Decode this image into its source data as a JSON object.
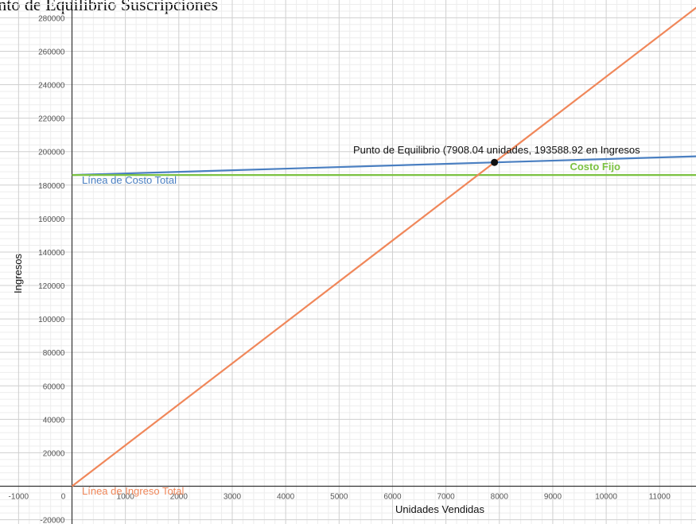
{
  "chart_data": {
    "type": "line",
    "title": "Punto de Equilibrio Suscripciones",
    "xlabel": "Unidades Vendidas",
    "ylabel": "Ingresos",
    "xlim": [
      -1000,
      11700
    ],
    "ylim": [
      -20000,
      286000
    ],
    "x_ticks": [
      -1000,
      0,
      1000,
      2000,
      3000,
      4000,
      5000,
      6000,
      7000,
      8000,
      9000,
      10000,
      11000
    ],
    "y_ticks": [
      -20000,
      20000,
      40000,
      60000,
      80000,
      100000,
      120000,
      140000,
      160000,
      180000,
      200000,
      220000,
      240000,
      260000,
      280000
    ],
    "grid": true,
    "series": [
      {
        "name": "Línea de Costo Total",
        "color": "#4a7fc1",
        "x": [
          0,
          11700
        ],
        "y": [
          186000,
          197200
        ]
      },
      {
        "name": "Costo Fijo",
        "color": "#7cc242",
        "x": [
          0,
          11700
        ],
        "y": [
          186000,
          186000
        ]
      },
      {
        "name": "Línea de Ingreso Total",
        "color": "#f0875a",
        "x": [
          0,
          11700
        ],
        "y": [
          0,
          286400
        ]
      }
    ],
    "annotations": [
      {
        "text": "Punto de Equilibrio (7908.04 unidades, 193588.92 en Ingresos",
        "x": 7908.04,
        "y": 193588.92
      }
    ]
  }
}
